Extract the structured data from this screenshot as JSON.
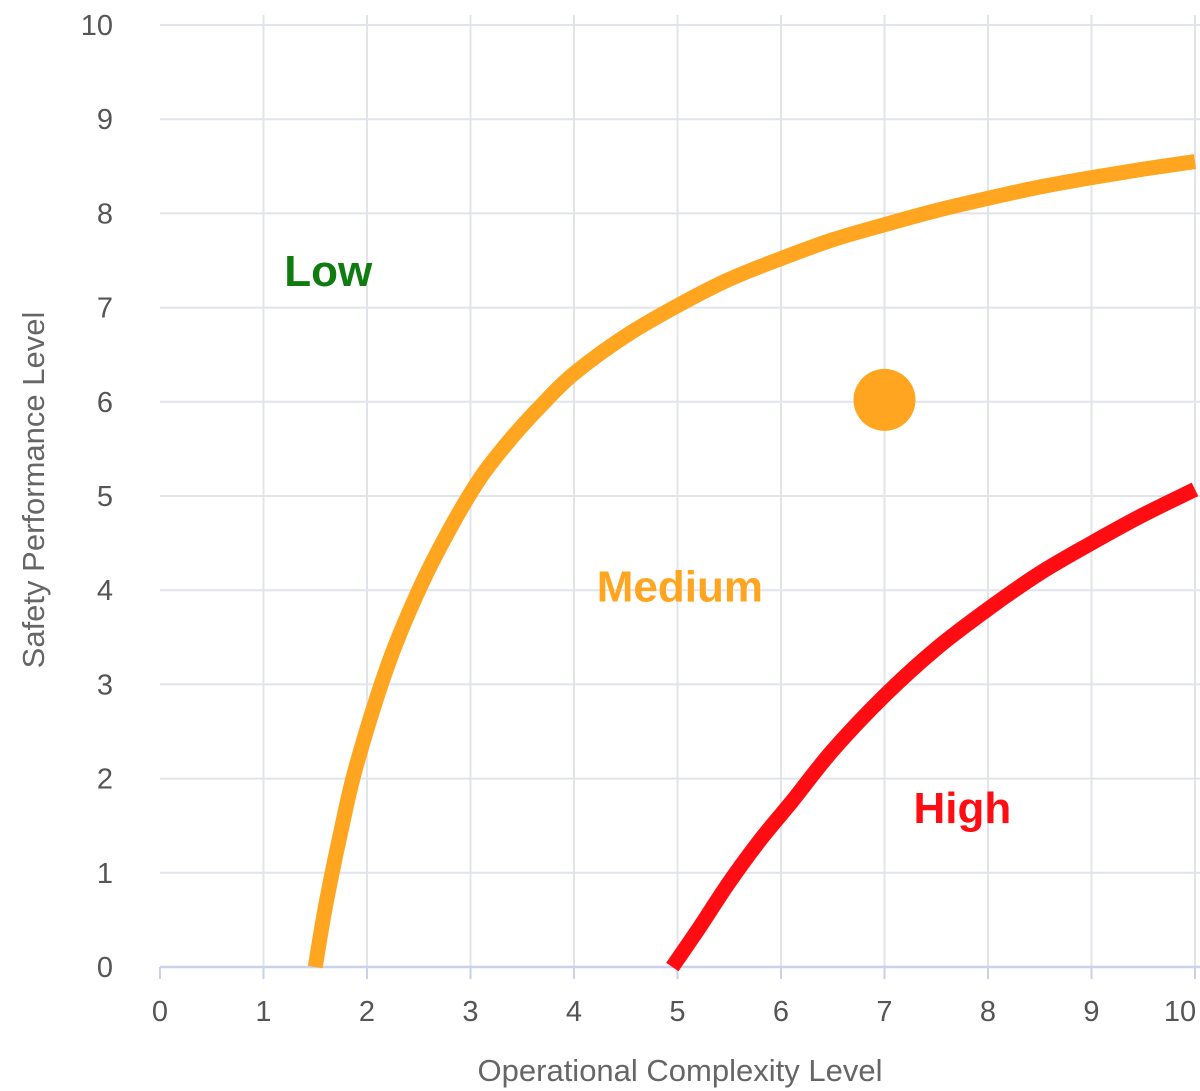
{
  "chart_data": {
    "type": "line",
    "title": "",
    "xlabel": "Operational Complexity Level",
    "ylabel": "Safety Performance Level",
    "xlim": [
      0,
      10
    ],
    "ylim": [
      0,
      10
    ],
    "x_ticks": [
      0,
      1,
      2,
      3,
      4,
      5,
      6,
      7,
      8,
      9,
      10
    ],
    "y_ticks": [
      0,
      1,
      2,
      3,
      4,
      5,
      6,
      7,
      8,
      9,
      10
    ],
    "grid": true,
    "series": [
      {
        "color": "#ffa51f",
        "x": [
          1.5,
          1.6,
          1.75,
          1.9,
          2.2,
          2.5,
          2.8,
          3.1,
          3.4,
          3.7,
          4.0,
          4.5,
          5.0,
          5.5,
          6.0,
          6.5,
          7.0,
          7.5,
          8.0,
          8.5,
          9.0,
          9.5,
          10.0
        ],
        "y": [
          0.0,
          0.65,
          1.45,
          2.15,
          3.2,
          4.0,
          4.65,
          5.2,
          5.62,
          5.98,
          6.3,
          6.7,
          7.02,
          7.3,
          7.52,
          7.72,
          7.88,
          8.03,
          8.16,
          8.28,
          8.38,
          8.47,
          8.55
        ]
      },
      {
        "color": "#ff0d12",
        "x": [
          4.95,
          5.2,
          5.5,
          5.8,
          6.1,
          6.5,
          7.0,
          7.5,
          8.0,
          8.5,
          9.0,
          9.5,
          10.0
        ],
        "y": [
          0.0,
          0.4,
          0.9,
          1.35,
          1.75,
          2.3,
          2.88,
          3.38,
          3.8,
          4.18,
          4.5,
          4.8,
          5.07
        ]
      }
    ],
    "points": [
      {
        "x": 7.0,
        "y": 6.02,
        "color": "#ffa51f"
      }
    ],
    "annotations": [
      {
        "text": "Low",
        "x": 1.2,
        "y": 7.4,
        "color": "#107c10"
      },
      {
        "text": "Medium",
        "x": 4.22,
        "y": 4.05,
        "color": "#ffa51f"
      },
      {
        "text": "High",
        "x": 7.28,
        "y": 1.7,
        "color": "#ff0d12"
      }
    ]
  }
}
